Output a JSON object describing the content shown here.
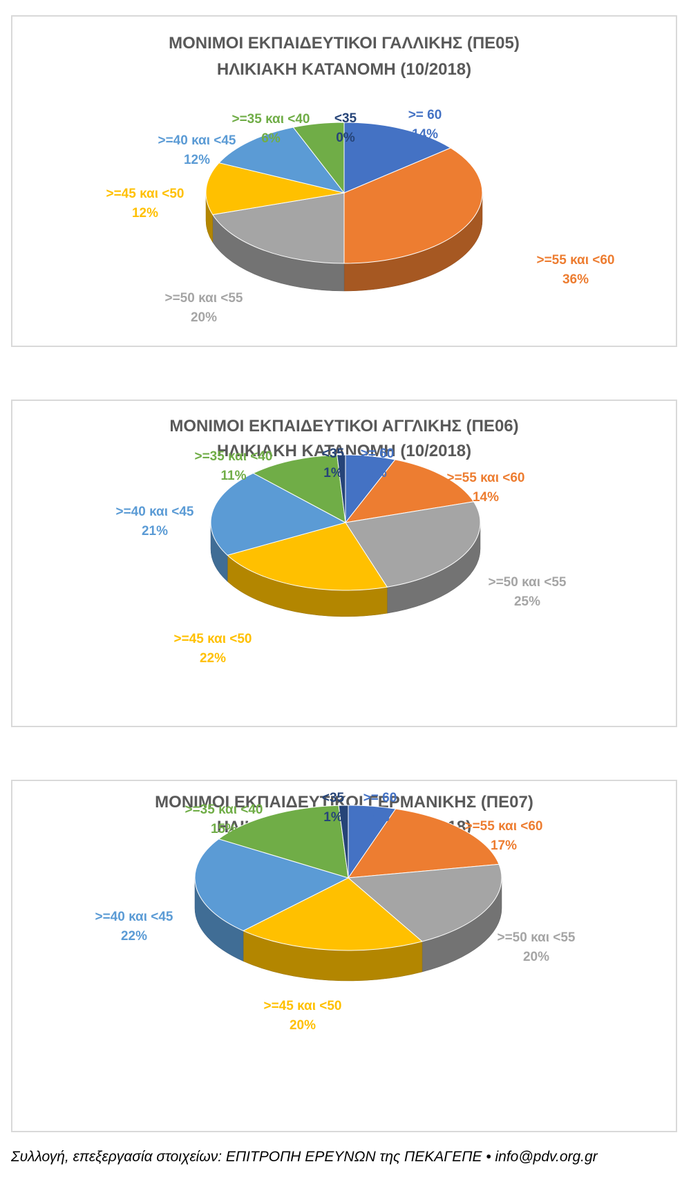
{
  "chart_data": [
    {
      "type": "pie",
      "title": "ΜΟΝΙΜΟΙ ΕΚΠΑΙΔΕΥΤΙΚΟΙ ΓΑΛΛΙΚΗΣ (ΠΕ05)",
      "subtitle": "ΗΛΙΚΙΑΚΗ ΚΑΤΑΝΟΜΗ (10/2018)",
      "slices": [
        {
          "label": ">= 60",
          "value": 14,
          "value_label": "14%",
          "color": "#4472C4"
        },
        {
          "label": ">=55 και <60",
          "value": 36,
          "value_label": "36%",
          "color": "#ED7D31"
        },
        {
          "label": ">=50 και <55",
          "value": 20,
          "value_label": "20%",
          "color": "#A5A5A5"
        },
        {
          "label": ">=45 και <50",
          "value": 12,
          "value_label": "12%",
          "color": "#FFC000"
        },
        {
          "label": ">=40 και <45",
          "value": 12,
          "value_label": "12%",
          "color": "#5B9BD5"
        },
        {
          "label": ">=35 και <40",
          "value": 6,
          "value_label": "6%",
          "color": "#70AD47"
        },
        {
          "label": "<35",
          "value": 0,
          "value_label": "0%",
          "color": "#264478"
        }
      ]
    },
    {
      "type": "pie",
      "title": "ΜΟΝΙΜΟΙ ΕΚΠΑΙΔΕΥΤΙΚΟΙ ΑΓΓΛΙΚΗΣ (ΠΕ06)",
      "subtitle": "ΗΛΙΚΙΑΚΗ ΚΑΤΑΝΟΜΗ (10/2018)",
      "slices": [
        {
          "label": ">= 60",
          "value": 6,
          "value_label": "6%",
          "color": "#4472C4"
        },
        {
          "label": ">=55 και <60",
          "value": 14,
          "value_label": "14%",
          "color": "#ED7D31"
        },
        {
          "label": ">=50 και <55",
          "value": 25,
          "value_label": "25%",
          "color": "#A5A5A5"
        },
        {
          "label": ">=45 και <50",
          "value": 22,
          "value_label": "22%",
          "color": "#FFC000"
        },
        {
          "label": ">=40 και <45",
          "value": 21,
          "value_label": "21%",
          "color": "#5B9BD5"
        },
        {
          "label": ">=35 και <40",
          "value": 11,
          "value_label": "11%",
          "color": "#70AD47"
        },
        {
          "label": "<35",
          "value": 1,
          "value_label": "1%",
          "color": "#264478"
        }
      ]
    },
    {
      "type": "pie",
      "title": "ΜΟΝΙΜΟΙ ΕΚΠΑΙΔΕΥΤΙΚΟΙ ΓΕΡΜΑΝΙΚΗΣ (ΠΕ07)",
      "subtitle": "ΗΛΙΚΙΑΚΗ ΚΑΤΑΝΟΜΗ (10/2018)",
      "slices": [
        {
          "label": ">= 60",
          "value": 5,
          "value_label": "5%",
          "color": "#4472C4"
        },
        {
          "label": ">=55 και <60",
          "value": 17,
          "value_label": "17%",
          "color": "#ED7D31"
        },
        {
          "label": ">=50 και <55",
          "value": 20,
          "value_label": "20%",
          "color": "#A5A5A5"
        },
        {
          "label": ">=45 και <50",
          "value": 20,
          "value_label": "20%",
          "color": "#FFC000"
        },
        {
          "label": ">=40 και <45",
          "value": 22,
          "value_label": "22%",
          "color": "#5B9BD5"
        },
        {
          "label": ">=35 και <40",
          "value": 15,
          "value_label": "15%",
          "color": "#70AD47"
        },
        {
          "label": "<35",
          "value": 1,
          "value_label": "1%",
          "color": "#264478"
        }
      ]
    }
  ],
  "footer": "Συλλογή, επεξεργασία στοιχείων: ΕΠΙΤΡΟΠΗ ΕΡΕΥΝΩΝ της ΠΕΚΑΓΕΠΕ • info@pdv.org.gr"
}
